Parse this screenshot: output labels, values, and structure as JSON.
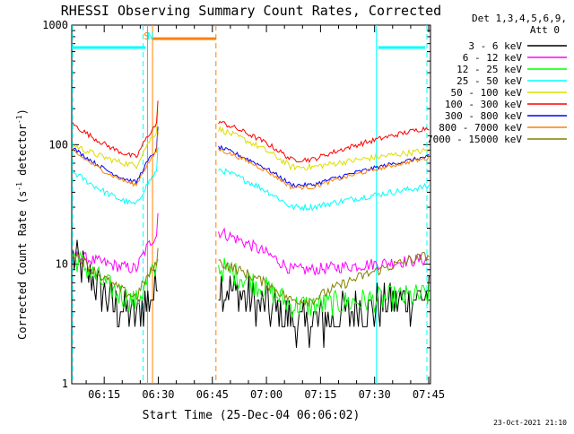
{
  "chart_data": {
    "type": "line",
    "title": "RHESSI Observing Summary Count Rates, Corrected",
    "xlabel": "Start Time (25-Dec-04 06:06:02)",
    "ylabel_main": "Corrected Count Rate (s",
    "ylabel_exp1": "-1",
    "ylabel_mid": " detector",
    "ylabel_exp2": "-1",
    "ylabel_end": ")",
    "yscale": "log",
    "ylim": [
      1,
      1000
    ],
    "xlim_minutes": [
      6.0,
      105.5
    ],
    "yticks": [
      {
        "value": 1,
        "label": "1"
      },
      {
        "value": 10,
        "label": "10"
      },
      {
        "value": 100,
        "label": "100"
      },
      {
        "value": 1000,
        "label": "1000"
      }
    ],
    "xticks": [
      {
        "minute": 15,
        "label": "06:15"
      },
      {
        "minute": 30,
        "label": "06:30"
      },
      {
        "minute": 45,
        "label": "06:45"
      },
      {
        "minute": 60,
        "label": "07:00"
      },
      {
        "minute": 75,
        "label": "07:15"
      },
      {
        "minute": 90,
        "label": "07:30"
      },
      {
        "minute": 105,
        "label": "07:45"
      }
    ],
    "legend_header": [
      "Det 1,3,4,5,6,9,",
      "Att 0"
    ],
    "legend_placement": "right",
    "footer": "23-Oct-2021 21:10",
    "series": [
      {
        "name": "3 - 6 keV",
        "color": "#000000",
        "start": 12,
        "dip": 3.2,
        "end": 5.5,
        "jitter": 0.45,
        "stair": true
      },
      {
        "name": "6 - 12 keV",
        "color": "#ff00ff",
        "start": 12,
        "dip": 9,
        "end": 11,
        "jitter": 0.12
      },
      {
        "name": "12 - 25 keV",
        "color": "#00ff00",
        "start": 12,
        "dip": 4.5,
        "end": 5.5,
        "jitter": 0.25
      },
      {
        "name": "25 - 50 keV",
        "color": "#00ffff",
        "start": 60,
        "dip": 30,
        "end": 45,
        "jitter": 0.06
      },
      {
        "name": "50 - 100 keV",
        "color": "#dddd00",
        "start": 100,
        "dip": 65,
        "end": 90,
        "jitter": 0.06
      },
      {
        "name": "100 - 300 keV",
        "color": "#ff0000",
        "start": 150,
        "dip": 75,
        "end": 140,
        "jitter": 0.05
      },
      {
        "name": "300 - 800 keV",
        "color": "#0000ff",
        "start": 95,
        "dip": 46,
        "end": 80,
        "jitter": 0.04
      },
      {
        "name": "800 - 7000 keV",
        "color": "#ff8000",
        "start": 90,
        "dip": 44,
        "end": 78,
        "jitter": 0.04
      },
      {
        "name": "7000 - 15000 keV",
        "color": "#808000",
        "start": 13,
        "dip": 5,
        "end": 12,
        "jitter": 0.1
      }
    ],
    "orbit_gaps": [
      {
        "from_minute": 29.5,
        "to_minute": 46.0
      }
    ],
    "annotations": [
      {
        "label": "S",
        "minute": 26.8,
        "color": "#ff8000"
      },
      {
        "label": "N",
        "minute": 27.8,
        "color": "#00ffff"
      }
    ],
    "flag_bars": [
      {
        "from_minute": 6.0,
        "to_minute": 26.5,
        "value": 650,
        "color": "#00ffff"
      },
      {
        "from_minute": 28.5,
        "to_minute": 46.0,
        "value": 770,
        "color": "#ff8000"
      },
      {
        "from_minute": 91.0,
        "to_minute": 104.0,
        "value": 650,
        "color": "#00ffff"
      }
    ],
    "vertical_markers": [
      {
        "minute": 6.2,
        "color": "#00ffff",
        "dashed": true
      },
      {
        "minute": 25.8,
        "color": "#00ffff",
        "dashed": true
      },
      {
        "minute": 27.0,
        "color": "#ff8000",
        "dashed": false
      },
      {
        "minute": 28.4,
        "color": "#ff8000",
        "dashed": false
      },
      {
        "minute": 46.0,
        "color": "#ff8000",
        "dashed": true
      },
      {
        "minute": 90.5,
        "color": "#00ffff",
        "dashed": false
      },
      {
        "minute": 104.5,
        "color": "#00ffff",
        "dashed": true
      }
    ]
  }
}
